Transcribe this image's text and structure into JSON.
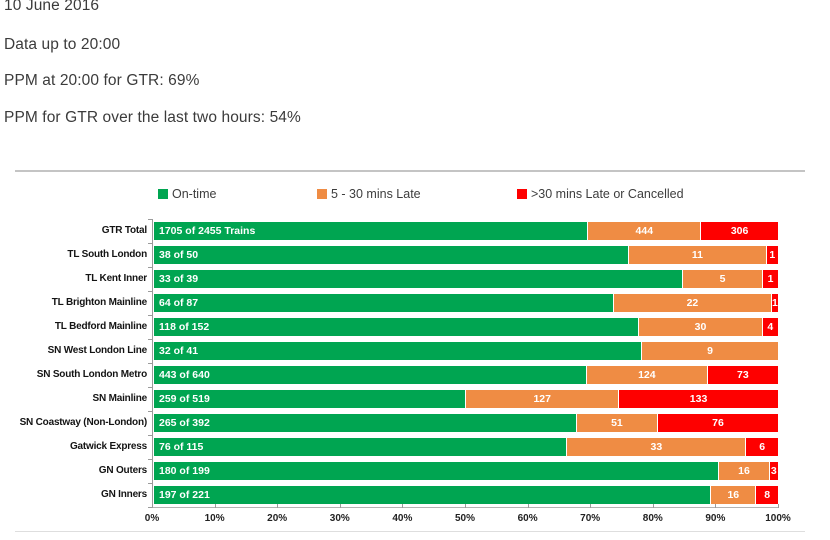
{
  "header": {
    "date": "10 June 2016",
    "data_up_to": "Data up to 20:00",
    "ppm_now": "PPM at 20:00 for GTR: 69%",
    "ppm_last_two_hours": "PPM for GTR over the last two hours: 54%"
  },
  "legend": [
    {
      "label": "On-time",
      "color": "#00A551"
    },
    {
      "label": "5 - 30 mins Late",
      "color": "#EF8C44"
    },
    {
      "label": ">30 mins Late or Cancelled",
      "color": "#FE0000"
    }
  ],
  "chart_data": {
    "type": "bar",
    "orientation": "horizontal",
    "stacked": true,
    "title": "",
    "xlabel": "",
    "ylabel": "",
    "xlim": [
      0,
      100
    ],
    "x_tick_labels": [
      "0%",
      "10%",
      "20%",
      "30%",
      "40%",
      "50%",
      "60%",
      "70%",
      "80%",
      "90%",
      "100%"
    ],
    "grid": false,
    "legend_position": "top",
    "series_names": [
      "On-time",
      "5 - 30 mins Late",
      ">30 mins Late or Cancelled"
    ],
    "colors": {
      "on_time": "#00A551",
      "late_5_30": "#EF8C44",
      "late_over_30_or_cancelled": "#FE0000"
    },
    "rows": [
      {
        "category": "GTR Total",
        "total": 2455,
        "on_time": 1705,
        "late_5_30": 444,
        "late_over_30_or_cancelled": 306,
        "on_time_bar_label": "1705 of 2455 Trains"
      },
      {
        "category": "TL South London",
        "total": 50,
        "on_time": 38,
        "late_5_30": 11,
        "late_over_30_or_cancelled": 1,
        "on_time_bar_label": "38 of 50"
      },
      {
        "category": "TL Kent Inner",
        "total": 39,
        "on_time": 33,
        "late_5_30": 5,
        "late_over_30_or_cancelled": 1,
        "on_time_bar_label": "33 of 39"
      },
      {
        "category": "TL Brighton Mainline",
        "total": 87,
        "on_time": 64,
        "late_5_30": 22,
        "late_over_30_or_cancelled": 1,
        "on_time_bar_label": "64 of 87"
      },
      {
        "category": "TL Bedford Mainline",
        "total": 152,
        "on_time": 118,
        "late_5_30": 30,
        "late_over_30_or_cancelled": 4,
        "on_time_bar_label": "118 of 152"
      },
      {
        "category": "SN West London Line",
        "total": 41,
        "on_time": 32,
        "late_5_30": 9,
        "late_over_30_or_cancelled": 0,
        "on_time_bar_label": "32 of 41"
      },
      {
        "category": "SN South London Metro",
        "total": 640,
        "on_time": 443,
        "late_5_30": 124,
        "late_over_30_or_cancelled": 73,
        "on_time_bar_label": "443 of 640"
      },
      {
        "category": "SN Mainline",
        "total": 519,
        "on_time": 259,
        "late_5_30": 127,
        "late_over_30_or_cancelled": 133,
        "on_time_bar_label": "259 of 519"
      },
      {
        "category": "SN Coastway (Non-London)",
        "total": 392,
        "on_time": 265,
        "late_5_30": 51,
        "late_over_30_or_cancelled": 76,
        "on_time_bar_label": "265 of 392"
      },
      {
        "category": "Gatwick Express",
        "total": 115,
        "on_time": 76,
        "late_5_30": 33,
        "late_over_30_or_cancelled": 6,
        "on_time_bar_label": "76 of 115"
      },
      {
        "category": "GN Outers",
        "total": 199,
        "on_time": 180,
        "late_5_30": 16,
        "late_over_30_or_cancelled": 3,
        "on_time_bar_label": "180 of 199"
      },
      {
        "category": "GN Inners",
        "total": 221,
        "on_time": 197,
        "late_5_30": 16,
        "late_over_30_or_cancelled": 8,
        "on_time_bar_label": "197 of 221"
      }
    ]
  }
}
